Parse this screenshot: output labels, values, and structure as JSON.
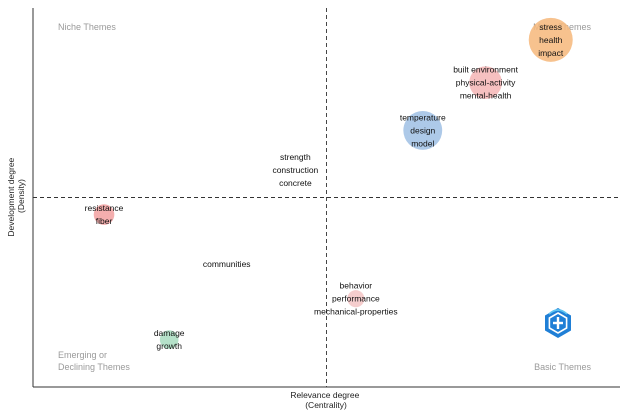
{
  "chart_data": {
    "type": "scatter",
    "title": "",
    "xlabel": [
      "Relevance degree",
      "(Centrality)"
    ],
    "ylabel": [
      "Development degree",
      "(Density)"
    ],
    "xlim": [
      0,
      1
    ],
    "ylim": [
      0,
      1
    ],
    "grid": false,
    "quadrant_lines": {
      "x": 0.5,
      "y": 0.5
    },
    "quadrants": {
      "top_left": [
        "Niche Themes"
      ],
      "top_right": [
        "Motor Themes"
      ],
      "bottom_left": [
        "Emerging or",
        "Declining Themes"
      ],
      "bottom_right": [
        "Basic Themes"
      ]
    },
    "clusters": [
      {
        "words": [
          "stress",
          "health",
          "impact"
        ],
        "x": 0.882,
        "y": 0.916,
        "size": 1.0,
        "color": "#f6b77a"
      },
      {
        "words": [
          "built environment",
          "physical-activity",
          "mental-health"
        ],
        "x": 0.771,
        "y": 0.803,
        "size": 0.55,
        "color": "#f4b5b5"
      },
      {
        "words": [
          "temperature",
          "design",
          "model"
        ],
        "x": 0.664,
        "y": 0.677,
        "size": 0.78,
        "color": "#9fc0e4"
      },
      {
        "words": [
          "strength",
          "construction",
          "concrete"
        ],
        "x": 0.447,
        "y": 0.573,
        "size": 0.0,
        "color": "#cccccc"
      },
      {
        "words": [
          "resistance",
          "fiber"
        ],
        "x": 0.121,
        "y": 0.455,
        "size": 0.22,
        "color": "#f2a0a0"
      },
      {
        "words": [
          "communities"
        ],
        "x": 0.33,
        "y": 0.325,
        "size": 0.0,
        "color": "#cccccc"
      },
      {
        "words": [
          "behavior",
          "performance",
          "mechanical-properties"
        ],
        "x": 0.55,
        "y": 0.233,
        "size": 0.15,
        "color": "#f3c4c4"
      },
      {
        "words": [
          "damage",
          "growth"
        ],
        "x": 0.232,
        "y": 0.125,
        "size": 0.18,
        "color": "#a8dcc0"
      }
    ]
  },
  "watermark": {
    "name": "logo-icon",
    "color": "#1f7fd6"
  }
}
